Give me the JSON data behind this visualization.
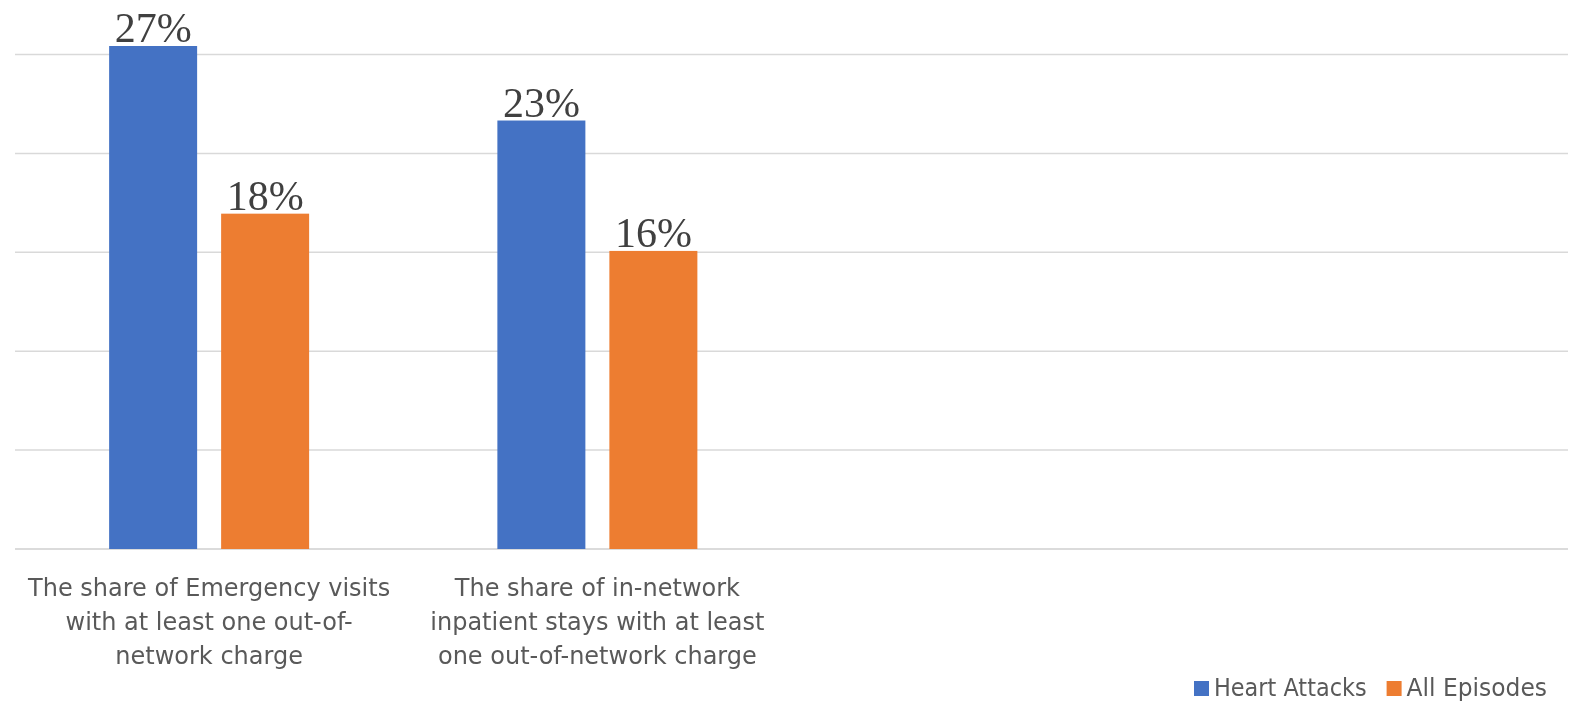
{
  "chart_data": {
    "type": "bar",
    "categories": [
      "The share of Emergency visits with at least one out-of-network charge",
      "The share of in-network inpatient stays with at least one out-of-network charge",
      null,
      null
    ],
    "series": [
      {
        "name": "Heart Attacks",
        "color": "#4472c4",
        "values": [
          27,
          23,
          null,
          null
        ],
        "value_labels": [
          "27%",
          "23%",
          null,
          null
        ]
      },
      {
        "name": "All Episodes",
        "color": "#ed7d31",
        "values": [
          18,
          16,
          null,
          null
        ],
        "value_labels": [
          "18%",
          "16%",
          null,
          null
        ]
      }
    ],
    "grid": "y",
    "legend": "bottom right"
  }
}
